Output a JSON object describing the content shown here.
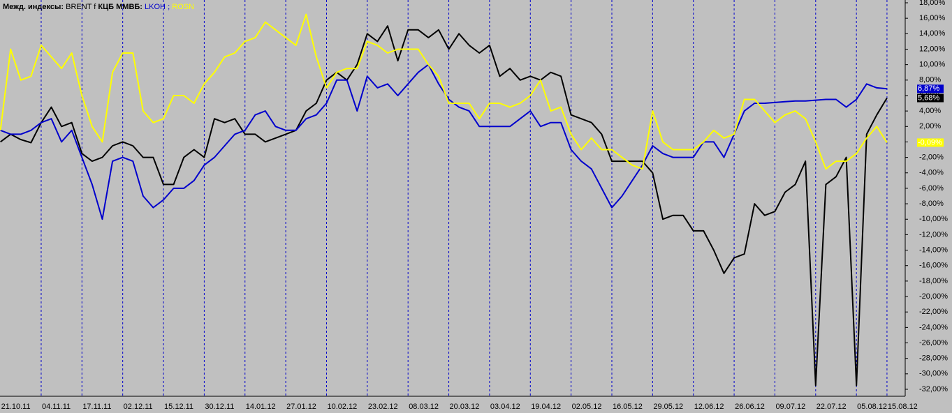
{
  "chart_data": {
    "type": "line",
    "legend_groups": [
      "Межд. индексы:",
      "КЦБ ММВБ:"
    ],
    "legend_separator": ";",
    "categories": [
      "21.10.11",
      null,
      null,
      null,
      "04.11.11",
      null,
      null,
      null,
      "17.11.11",
      null,
      null,
      null,
      "02.12.11",
      null,
      null,
      null,
      "15.12.11",
      null,
      null,
      null,
      "30.12.11",
      null,
      null,
      null,
      "14.01.12",
      null,
      null,
      null,
      "27.01.12",
      null,
      null,
      null,
      "10.02.12",
      null,
      null,
      null,
      "23.02.12",
      null,
      null,
      null,
      "08.03.12",
      null,
      null,
      null,
      "20.03.12",
      null,
      null,
      null,
      "03.04.12",
      null,
      null,
      null,
      "19.04.12",
      null,
      null,
      null,
      "02.05.12",
      null,
      null,
      null,
      "16.05.12",
      null,
      null,
      null,
      "29.05.12",
      null,
      null,
      null,
      "12.06.12",
      null,
      null,
      null,
      "26.06.12",
      null,
      null,
      null,
      "09.07.12",
      null,
      null,
      null,
      "22.07.12",
      null,
      null,
      null,
      "05.08.12",
      null,
      null,
      "15.08.12"
    ],
    "series": [
      {
        "name": "BRENT f",
        "group": 0,
        "color": "#000000",
        "label_text_color": "#ffffff",
        "values": [
          0,
          1,
          0.3,
          -0.1,
          2.5,
          4.5,
          2,
          2.5,
          -1.5,
          -2.5,
          -2,
          -0.5,
          0,
          -0.5,
          -2,
          -2,
          -5.5,
          -5.5,
          -2,
          -1,
          -2,
          3,
          2.5,
          3,
          1,
          1,
          0,
          0.5,
          1,
          1.5,
          4,
          5,
          8,
          9,
          8,
          10,
          14,
          13,
          15,
          10.5,
          14.5,
          14.5,
          13.5,
          14.5,
          12,
          14,
          12.5,
          11.5,
          12.5,
          8.5,
          9.5,
          8,
          8.5,
          8,
          9,
          8.5,
          3.5,
          3,
          2.5,
          1,
          -2.5,
          -2.5,
          -2.5,
          -2.5,
          -4,
          -10,
          -9.5,
          -9.5,
          -11.5,
          -11.5,
          -14,
          -17,
          -15,
          -14.5,
          -8,
          -9.5,
          -9,
          -6.5,
          -5.5,
          -2.5,
          -31.5,
          -5.5,
          -4.5,
          -2,
          -31.5,
          1,
          3.5,
          5.68
        ],
        "value_labels": {
          "87": "5,68%"
        }
      },
      {
        "name": "LKOH",
        "group": 1,
        "color": "#0000cc",
        "label_text_color": "#ffffff",
        "values": [
          1.5,
          1,
          1,
          1.5,
          2.5,
          3,
          0,
          1.5,
          -2,
          -5.5,
          -10,
          -2.5,
          -2,
          -2.5,
          -7,
          -8.5,
          -7.5,
          -6,
          -6,
          -5,
          -3,
          -2,
          -0.5,
          1,
          1.5,
          3.5,
          4,
          2,
          1.5,
          1.5,
          3,
          3.5,
          5,
          8,
          8,
          4,
          8.5,
          7,
          7.5,
          6,
          7.5,
          9,
          10,
          7.5,
          5.5,
          4.5,
          4,
          2,
          2,
          2,
          2,
          3,
          4,
          2,
          2.5,
          2.5,
          -1,
          -2.5,
          -3.5,
          -6,
          -8.5,
          -7,
          -5,
          -3,
          -0.5,
          -1.5,
          -2,
          -2,
          -2,
          0,
          0,
          -2,
          1,
          4,
          5,
          5,
          5.1,
          5.2,
          5.3,
          5.3,
          5.4,
          5.5,
          5.5,
          4.5,
          5.5,
          7.5,
          7,
          6.87
        ],
        "value_labels": {
          "87": "6,87%"
        }
      },
      {
        "name": "ROSN",
        "group": 1,
        "color": "#ffff00",
        "label_text_color": "#ffffff",
        "values": [
          1.5,
          12,
          8,
          8.5,
          12.5,
          11,
          9.5,
          11.5,
          6,
          2,
          0,
          9,
          11.5,
          11.5,
          4,
          2.5,
          3,
          6,
          6,
          5,
          7.5,
          9,
          11,
          11.5,
          13,
          13.5,
          15.5,
          14.5,
          13.5,
          12.5,
          16.5,
          11,
          7,
          9,
          9.5,
          9.5,
          13,
          12.5,
          11.5,
          12,
          12,
          12,
          10,
          8.5,
          5,
          5,
          5,
          3,
          5,
          5,
          4.5,
          5,
          6,
          8,
          4,
          4.5,
          1,
          -1,
          0.5,
          -1,
          -1,
          -2,
          -3,
          -3.5,
          4,
          0,
          -1,
          -1,
          -1,
          0,
          1.5,
          0.5,
          1,
          5.5,
          5.5,
          4,
          2.5,
          3.5,
          4,
          3,
          0,
          -3.5,
          -2.5,
          -2.5,
          -1.5,
          0.5,
          2,
          -0.09
        ],
        "value_labels": {
          "87": "-0,09%"
        }
      }
    ],
    "ylim": [
      -32,
      18
    ],
    "yticks": [
      {
        "value": 18,
        "label": "18,00%"
      },
      {
        "value": 16,
        "label": "16,00%"
      },
      {
        "value": 14,
        "label": "14,00%"
      },
      {
        "value": 12,
        "label": "12,00%"
      },
      {
        "value": 10,
        "label": "10,00%"
      },
      {
        "value": 8,
        "label": "8,00%"
      },
      {
        "value": 6,
        "label": "6,00%"
      },
      {
        "value": 4,
        "label": "4,00%"
      },
      {
        "value": 2,
        "label": "2,00%"
      },
      {
        "value": 0,
        "label": "0,00%"
      },
      {
        "value": -2,
        "label": "-2,00%"
      },
      {
        "value": -4,
        "label": "-4,00%"
      },
      {
        "value": -6,
        "label": "-6,00%"
      },
      {
        "value": -8,
        "label": "-8,00%"
      },
      {
        "value": -10,
        "label": "-10,00%"
      },
      {
        "value": -12,
        "label": "-12,00%"
      },
      {
        "value": -14,
        "label": "-14,00%"
      },
      {
        "value": -16,
        "label": "-16,00%"
      },
      {
        "value": -18,
        "label": "-18,00%"
      },
      {
        "value": -20,
        "label": "-20,00%"
      },
      {
        "value": -22,
        "label": "-22,00%"
      },
      {
        "value": -24,
        "label": "-24,00%"
      },
      {
        "value": -26,
        "label": "-26,00%"
      },
      {
        "value": -28,
        "label": "-28,00%"
      },
      {
        "value": -30,
        "label": "-30,00%"
      },
      {
        "value": -32,
        "label": "-32,00%"
      }
    ],
    "vertical_grid": true,
    "vertical_grid_color": "#0000cc"
  }
}
